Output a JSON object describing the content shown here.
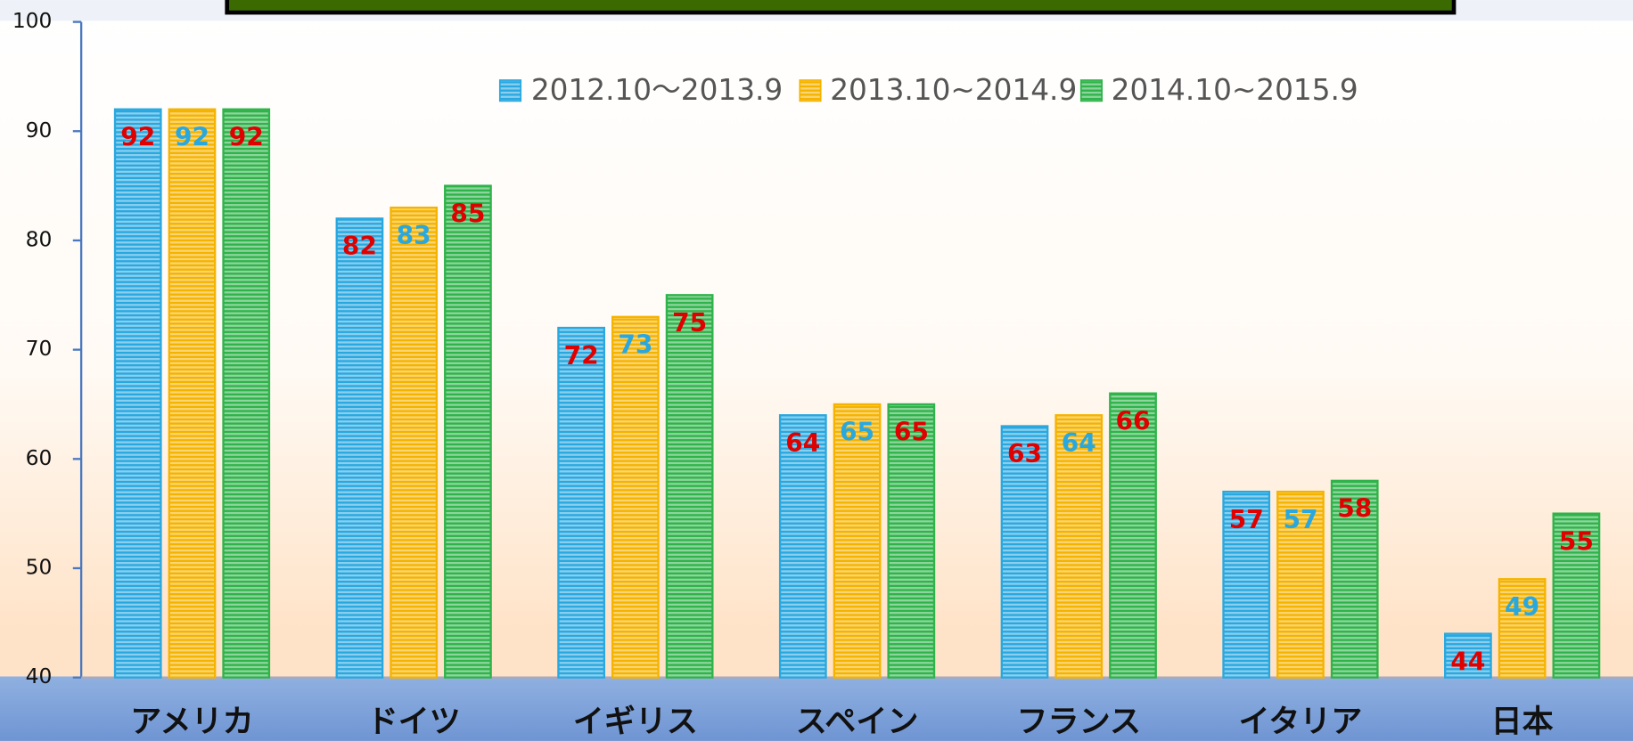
{
  "chart_data": {
    "type": "bar",
    "categories": [
      "アメリカ",
      "ドイツ",
      "イギリス",
      "スペイン",
      "フランス",
      "イタリア",
      "日本"
    ],
    "series": [
      {
        "name": "2012.10〜2013.9",
        "color": "#29a8e0",
        "label_color": "#e00000",
        "values": [
          92,
          82,
          72,
          64,
          63,
          57,
          44
        ]
      },
      {
        "name": "2013.10~2014.9",
        "color": "#f5b300",
        "label_color": "#29a8e0",
        "values": [
          92,
          83,
          73,
          65,
          64,
          57,
          49
        ]
      },
      {
        "name": "2014.10~2015.9",
        "color": "#2fb34a",
        "label_color": "#e00000",
        "values": [
          92,
          85,
          75,
          65,
          66,
          58,
          55
        ]
      }
    ],
    "ylim": [
      40,
      100
    ],
    "yticks": [
      40,
      50,
      60,
      70,
      80,
      90,
      100
    ],
    "legend": "top"
  }
}
